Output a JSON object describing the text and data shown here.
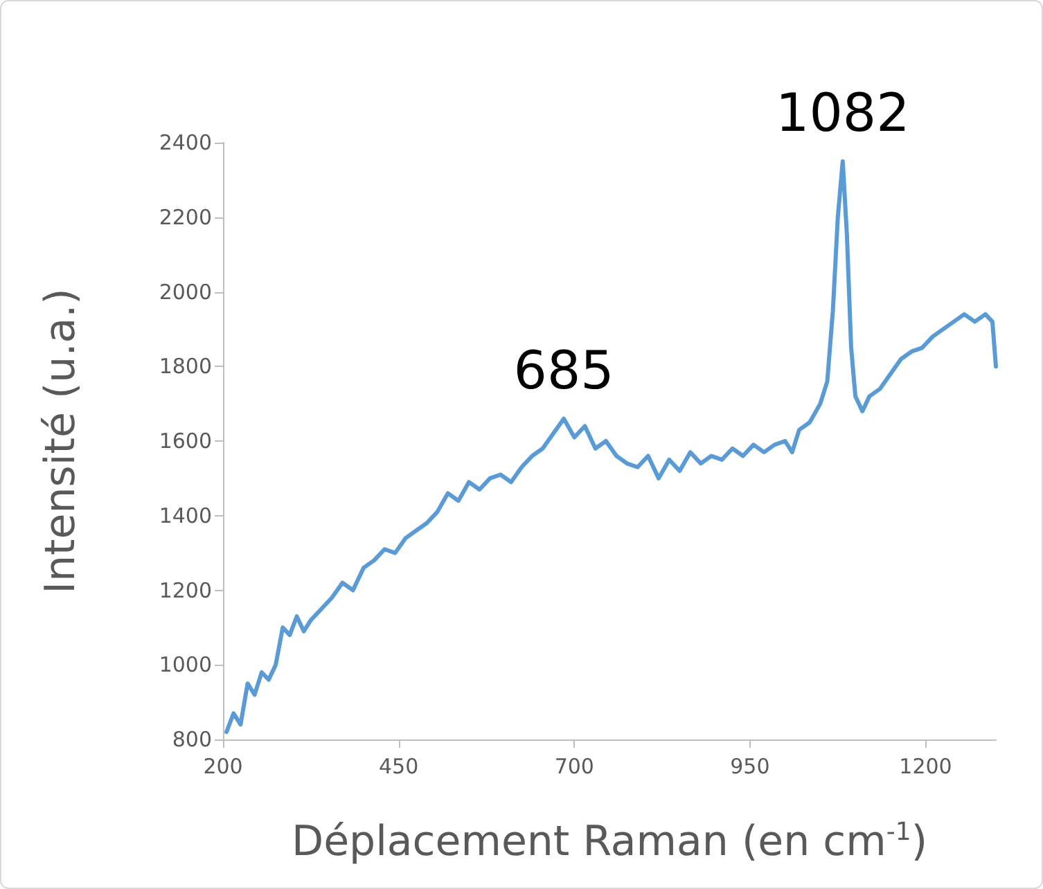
{
  "chart_data": {
    "type": "line",
    "xlabel": "Déplacement Raman (en cm$^{-1}$)",
    "ylabel": "Intensité (u.a.)",
    "xlim": [
      200,
      1300
    ],
    "xticks": [
      200,
      450,
      700,
      950,
      1200
    ],
    "ylim": [
      800,
      2400
    ],
    "yticks": [
      800,
      1000,
      1200,
      1400,
      1600,
      1800,
      2000,
      2200,
      2400
    ],
    "marker": "none",
    "line_style": "solid",
    "annotations": [
      {
        "text": "685",
        "x": 685,
        "y": 1660
      },
      {
        "text": "1082",
        "x": 1082,
        "y": 2350
      }
    ],
    "series": [
      {
        "color": "#5b9bd5",
        "x": [
          205,
          215,
          225,
          235,
          245,
          255,
          265,
          275,
          285,
          295,
          305,
          315,
          325,
          340,
          355,
          370,
          385,
          400,
          415,
          430,
          445,
          460,
          475,
          490,
          505,
          520,
          535,
          550,
          565,
          580,
          595,
          610,
          625,
          640,
          655,
          670,
          685,
          700,
          715,
          730,
          745,
          760,
          775,
          790,
          805,
          820,
          835,
          850,
          865,
          880,
          895,
          910,
          925,
          940,
          955,
          970,
          985,
          1000,
          1010,
          1020,
          1035,
          1050,
          1060,
          1068,
          1075,
          1082,
          1088,
          1094,
          1100,
          1110,
          1120,
          1135,
          1150,
          1165,
          1180,
          1195,
          1210,
          1225,
          1240,
          1255,
          1270,
          1285,
          1295,
          1300
        ],
        "values": [
          820,
          870,
          840,
          950,
          920,
          980,
          960,
          1000,
          1100,
          1080,
          1130,
          1090,
          1120,
          1150,
          1180,
          1220,
          1200,
          1260,
          1280,
          1310,
          1300,
          1340,
          1360,
          1380,
          1410,
          1460,
          1440,
          1490,
          1470,
          1500,
          1510,
          1490,
          1530,
          1560,
          1580,
          1620,
          1660,
          1610,
          1640,
          1580,
          1600,
          1560,
          1540,
          1530,
          1560,
          1500,
          1550,
          1520,
          1570,
          1540,
          1560,
          1550,
          1580,
          1560,
          1590,
          1570,
          1590,
          1600,
          1570,
          1630,
          1650,
          1700,
          1760,
          1950,
          2200,
          2350,
          2150,
          1850,
          1720,
          1680,
          1720,
          1740,
          1780,
          1820,
          1840,
          1850,
          1880,
          1900,
          1920,
          1940,
          1920,
          1940,
          1920,
          1800
        ]
      }
    ]
  }
}
